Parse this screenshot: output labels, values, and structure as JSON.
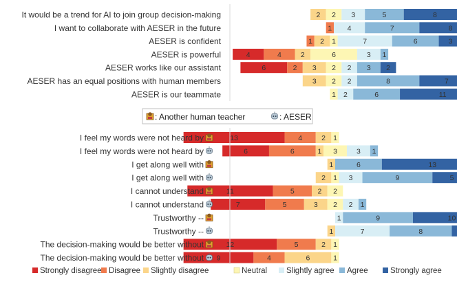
{
  "chart_data": {
    "type": "bar",
    "stacking": "diverging",
    "categories_order": [
      "Strongly disagree",
      "Disagree",
      "Slightly disagree",
      "Neutral",
      "Slightly agree",
      "Agree",
      "Strongly agree"
    ],
    "colors": [
      "#d62a2a",
      "#f07b4d",
      "#fbd58a",
      "#fdf6b4",
      "#d8eef5",
      "#8ab8d8",
      "#3363a3"
    ],
    "top": {
      "rows": [
        {
          "label": "It would be a trend for AI to join group decision-making",
          "values": [
            0,
            0,
            2,
            2,
            3,
            5,
            8
          ]
        },
        {
          "label": "I want to collaborate with AESER in the future",
          "values": [
            0,
            1,
            0,
            0,
            4,
            7,
            8
          ]
        },
        {
          "label": "AESER is confident",
          "values": [
            0,
            1,
            2,
            1,
            7,
            6,
            3
          ]
        },
        {
          "label": "AESER is powerful",
          "values": [
            4,
            4,
            2,
            6,
            3,
            1,
            0
          ]
        },
        {
          "label": "AESER works like our assistant",
          "values": [
            6,
            2,
            3,
            2,
            2,
            3,
            2
          ]
        },
        {
          "label": "AESER has an equal positions with human members",
          "values": [
            0,
            0,
            3,
            2,
            2,
            8,
            7
          ]
        },
        {
          "label": "AESER is our teammate",
          "values": [
            0,
            0,
            0,
            1,
            2,
            6,
            11
          ]
        }
      ]
    },
    "bottom": {
      "rows": [
        {
          "label": "I feel my words were not heard by",
          "target": "human",
          "values": [
            13,
            4,
            2,
            1,
            0,
            0,
            0
          ]
        },
        {
          "label": "I feel my words were not heard by",
          "target": "robot",
          "values": [
            6,
            6,
            1,
            3,
            3,
            1,
            0
          ]
        },
        {
          "label": "I get along well with",
          "target": "human",
          "values": [
            0,
            0,
            1,
            0,
            0,
            6,
            13
          ]
        },
        {
          "label": "I get along well with",
          "target": "robot",
          "values": [
            0,
            0,
            2,
            1,
            3,
            9,
            5
          ]
        },
        {
          "label": "I cannot understand",
          "target": "human",
          "values": [
            11,
            5,
            2,
            2,
            0,
            0,
            0
          ]
        },
        {
          "label": "I cannot understand",
          "target": "robot",
          "values": [
            7,
            5,
            3,
            2,
            2,
            1,
            0
          ]
        },
        {
          "label": "Trustworthy --",
          "target": "human",
          "values": [
            0,
            0,
            0,
            0,
            1,
            9,
            10
          ]
        },
        {
          "label": "Trustworthy --",
          "target": "robot",
          "values": [
            0,
            0,
            1,
            0,
            7,
            8,
            4
          ]
        },
        {
          "label": "The decision-making would be better without",
          "target": "human",
          "values": [
            12,
            5,
            2,
            1,
            0,
            0,
            0
          ]
        },
        {
          "label": "The decision-making would be better without",
          "target": "robot",
          "values": [
            9,
            4,
            6,
            1,
            0,
            0,
            0
          ]
        }
      ]
    },
    "icon_legend": {
      "human_label": ": Another human teacher",
      "robot_label": ": AESER"
    },
    "legend": [
      "Strongly disagree",
      "Disagree",
      "Slightly disagree",
      "Neutral",
      "Slightly agree",
      "Agree",
      "Strongly agree"
    ]
  }
}
